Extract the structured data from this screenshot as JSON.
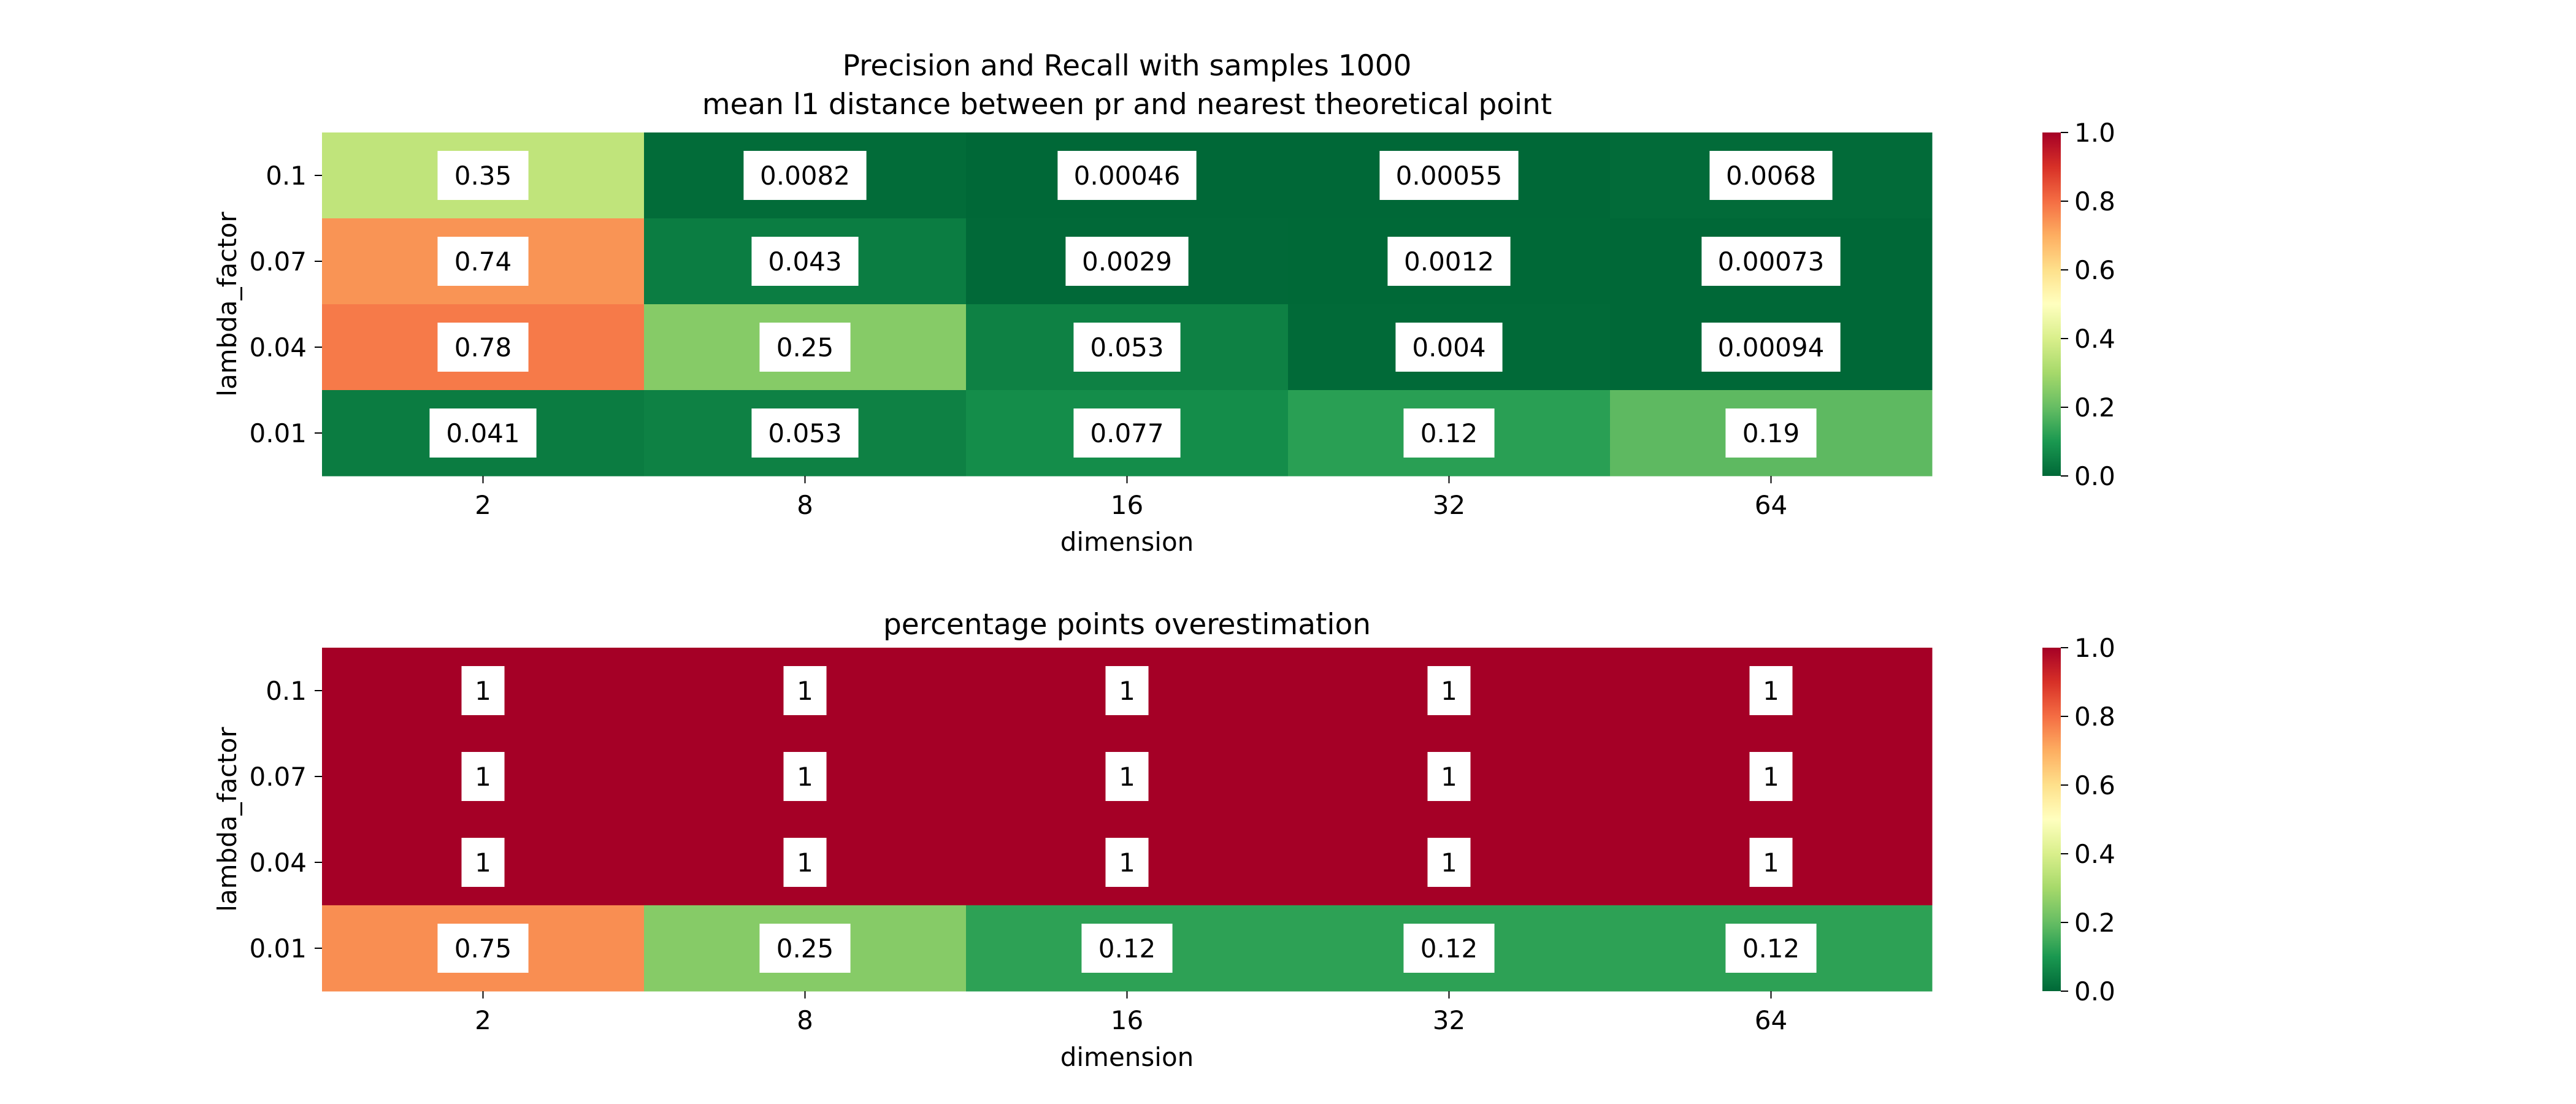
{
  "chart_data": [
    {
      "type": "heatmap",
      "title": "Precision and Recall with samples 1000",
      "subtitle": "mean l1 distance between pr and nearest theoretical point",
      "xlabel": "dimension",
      "ylabel": "lambda_factor",
      "x": [
        "2",
        "8",
        "16",
        "32",
        "64"
      ],
      "y": [
        "0.1",
        "0.07",
        "0.04",
        "0.01"
      ],
      "values": [
        [
          0.35,
          0.0082,
          0.00046,
          0.00055,
          0.0068
        ],
        [
          0.74,
          0.043,
          0.0029,
          0.0012,
          0.00073
        ],
        [
          0.78,
          0.25,
          0.053,
          0.004,
          0.00094
        ],
        [
          0.041,
          0.053,
          0.077,
          0.12,
          0.19
        ]
      ],
      "value_labels": [
        [
          "0.35",
          "0.0082",
          "0.00046",
          "0.00055",
          "0.0068"
        ],
        [
          "0.74",
          "0.043",
          "0.0029",
          "0.0012",
          "0.00073"
        ],
        [
          "0.78",
          "0.25",
          "0.053",
          "0.004",
          "0.00094"
        ],
        [
          "0.041",
          "0.053",
          "0.077",
          "0.12",
          "0.19"
        ]
      ],
      "colormap": "RdYlGn_r",
      "vmin": 0,
      "vmax": 1,
      "colorbar_ticks": [
        "0.0",
        "0.2",
        "0.4",
        "0.6",
        "0.8",
        "1.0"
      ]
    },
    {
      "type": "heatmap",
      "title": "percentage points overestimation",
      "xlabel": "dimension",
      "ylabel": "lambda_factor",
      "x": [
        "2",
        "8",
        "16",
        "32",
        "64"
      ],
      "y": [
        "0.1",
        "0.07",
        "0.04",
        "0.01"
      ],
      "values": [
        [
          1,
          1,
          1,
          1,
          1
        ],
        [
          1,
          1,
          1,
          1,
          1
        ],
        [
          1,
          1,
          1,
          1,
          1
        ],
        [
          0.75,
          0.25,
          0.125,
          0.125,
          0.125
        ]
      ],
      "value_labels": [
        [
          "1",
          "1",
          "1",
          "1",
          "1"
        ],
        [
          "1",
          "1",
          "1",
          "1",
          "1"
        ],
        [
          "1",
          "1",
          "1",
          "1",
          "1"
        ],
        [
          "0.75",
          "0.25",
          "0.12",
          "0.12",
          "0.12"
        ]
      ],
      "colormap": "RdYlGn_r",
      "vmin": 0,
      "vmax": 1,
      "colorbar_ticks": [
        "0.0",
        "0.2",
        "0.4",
        "0.6",
        "0.8",
        "1.0"
      ]
    }
  ],
  "colors": {
    "annotation_box": "#ffffff",
    "text": "#000000"
  }
}
